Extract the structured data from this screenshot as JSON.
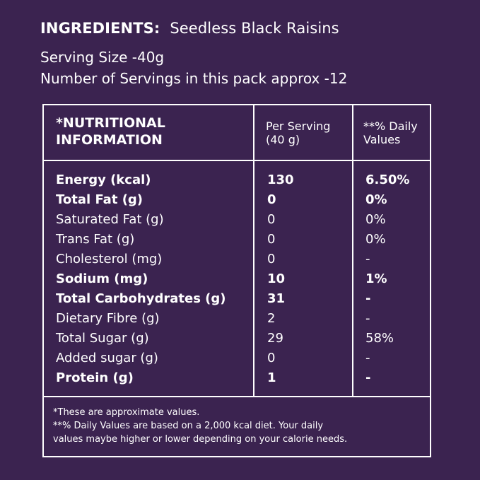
{
  "ingredients": {
    "label": "INGREDIENTS:",
    "value": "Seedless Black Raisins"
  },
  "serving_size": "Serving Size -40g",
  "servings_per_pack": "Number of Servings in this pack approx -12",
  "table": {
    "headers": {
      "nutrition_line1": "*NUTRITIONAL",
      "nutrition_line2": "INFORMATION",
      "per_serving_line1": "Per Serving",
      "per_serving_line2": "(40 g)",
      "daily_line1": "**% Daily",
      "daily_line2": "Values"
    },
    "rows": [
      {
        "name": "Energy (kcal)",
        "per_serving": "130",
        "daily": "6.50%"
      },
      {
        "name": "Total Fat (g)",
        "per_serving": "0",
        "daily": "0%"
      },
      {
        "name": "Saturated Fat (g)",
        "per_serving": "0",
        "daily": "0%"
      },
      {
        "name": "Trans Fat (g)",
        "per_serving": "0",
        "daily": "0%"
      },
      {
        "name": "Cholesterol (mg)",
        "per_serving": "0",
        "daily": "-"
      },
      {
        "name": "Sodium (mg)",
        "per_serving": "10",
        "daily": "1%"
      },
      {
        "name": "Total Carbohydrates (g)",
        "per_serving": "31",
        "daily": "-"
      },
      {
        "name": "Dietary Fibre (g)",
        "per_serving": "2",
        "daily": "-"
      },
      {
        "name": "Total Sugar (g)",
        "per_serving": "29",
        "daily": "58%"
      },
      {
        "name": "Added sugar (g)",
        "per_serving": "0",
        "daily": "-"
      },
      {
        "name": "Protein (g)",
        "per_serving": "1",
        "daily": "-"
      }
    ]
  },
  "footnotes": {
    "line1": "*These are approximate values.",
    "line2": "**% Daily Values are based on a 2,000 kcal diet. Your daily",
    "line3": "values maybe higher or lower depending on your calorie needs."
  },
  "colors": {
    "background": "#3b2350",
    "text": "#ffffff"
  }
}
